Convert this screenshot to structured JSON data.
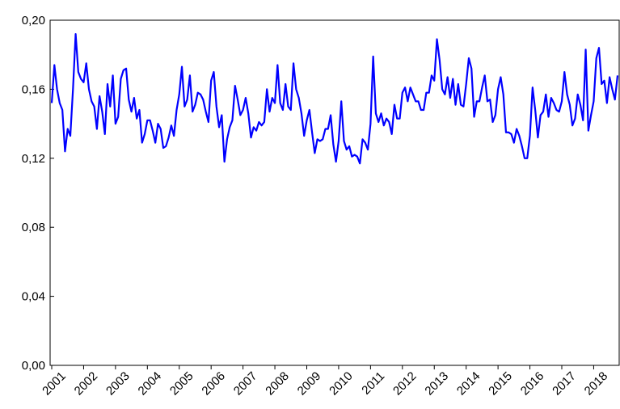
{
  "chart_data": {
    "type": "line",
    "categories": [
      "2001",
      null,
      null,
      null,
      null,
      null,
      null,
      null,
      null,
      null,
      null,
      null,
      "2002",
      null,
      null,
      null,
      null,
      null,
      null,
      null,
      null,
      null,
      null,
      null,
      "2003",
      null,
      null,
      null,
      null,
      null,
      null,
      null,
      null,
      null,
      null,
      null,
      "2004",
      null,
      null,
      null,
      null,
      null,
      null,
      null,
      null,
      null,
      null,
      null,
      "2005",
      null,
      null,
      null,
      null,
      null,
      null,
      null,
      null,
      null,
      null,
      null,
      "2006",
      null,
      null,
      null,
      null,
      null,
      null,
      null,
      null,
      null,
      null,
      null,
      "2007",
      null,
      null,
      null,
      null,
      null,
      null,
      null,
      null,
      null,
      null,
      null,
      "2008",
      null,
      null,
      null,
      null,
      null,
      null,
      null,
      null,
      null,
      null,
      null,
      "2009",
      null,
      null,
      null,
      null,
      null,
      null,
      null,
      null,
      null,
      null,
      null,
      "2010",
      null,
      null,
      null,
      null,
      null,
      null,
      null,
      null,
      null,
      null,
      null,
      "2011",
      null,
      null,
      null,
      null,
      null,
      null,
      null,
      null,
      null,
      null,
      null,
      "2012",
      null,
      null,
      null,
      null,
      null,
      null,
      null,
      null,
      null,
      null,
      null,
      "2013",
      null,
      null,
      null,
      null,
      null,
      null,
      null,
      null,
      null,
      null,
      null,
      "2014",
      null,
      null,
      null,
      null,
      null,
      null,
      null,
      null,
      null,
      null,
      null,
      "2015",
      null,
      null,
      null,
      null,
      null,
      null,
      null,
      null,
      null,
      null,
      null,
      "2016",
      null,
      null,
      null,
      null,
      null,
      null,
      null,
      null,
      null,
      null,
      null,
      "2017",
      null,
      null,
      null,
      null,
      null,
      null,
      null,
      null,
      null,
      null,
      null,
      "2018",
      null,
      null,
      null,
      null,
      null,
      null,
      null,
      null,
      null
    ],
    "values": [
      0.152,
      0.174,
      0.16,
      0.152,
      0.148,
      0.124,
      0.137,
      0.133,
      0.16,
      0.192,
      0.17,
      0.166,
      0.164,
      0.175,
      0.16,
      0.153,
      0.15,
      0.137,
      0.156,
      0.147,
      0.134,
      0.163,
      0.15,
      0.168,
      0.14,
      0.144,
      0.166,
      0.171,
      0.172,
      0.154,
      0.147,
      0.155,
      0.143,
      0.148,
      0.129,
      0.134,
      0.142,
      0.142,
      0.136,
      0.129,
      0.14,
      0.137,
      0.126,
      0.127,
      0.132,
      0.139,
      0.133,
      0.148,
      0.157,
      0.173,
      0.15,
      0.154,
      0.168,
      0.147,
      0.151,
      0.158,
      0.157,
      0.154,
      0.147,
      0.141,
      0.165,
      0.17,
      0.15,
      0.138,
      0.145,
      0.118,
      0.131,
      0.138,
      0.142,
      0.162,
      0.154,
      0.145,
      0.148,
      0.155,
      0.146,
      0.132,
      0.138,
      0.136,
      0.141,
      0.139,
      0.141,
      0.16,
      0.147,
      0.155,
      0.152,
      0.174,
      0.152,
      0.148,
      0.163,
      0.15,
      0.148,
      0.175,
      0.16,
      0.155,
      0.146,
      0.133,
      0.142,
      0.148,
      0.135,
      0.123,
      0.131,
      0.13,
      0.131,
      0.137,
      0.137,
      0.145,
      0.128,
      0.118,
      0.13,
      0.153,
      0.13,
      0.125,
      0.127,
      0.121,
      0.122,
      0.121,
      0.117,
      0.131,
      0.129,
      0.125,
      0.14,
      0.179,
      0.146,
      0.141,
      0.146,
      0.139,
      0.143,
      0.141,
      0.134,
      0.151,
      0.143,
      0.143,
      0.158,
      0.161,
      0.153,
      0.161,
      0.157,
      0.153,
      0.153,
      0.148,
      0.148,
      0.158,
      0.158,
      0.168,
      0.165,
      0.189,
      0.177,
      0.16,
      0.157,
      0.167,
      0.155,
      0.166,
      0.151,
      0.163,
      0.151,
      0.15,
      0.163,
      0.178,
      0.172,
      0.144,
      0.153,
      0.153,
      0.161,
      0.168,
      0.153,
      0.154,
      0.141,
      0.145,
      0.16,
      0.167,
      0.157,
      0.135,
      0.135,
      0.134,
      0.129,
      0.137,
      0.133,
      0.127,
      0.12,
      0.12,
      0.133,
      0.161,
      0.148,
      0.132,
      0.145,
      0.147,
      0.157,
      0.144,
      0.155,
      0.152,
      0.148,
      0.147,
      0.153,
      0.17,
      0.157,
      0.151,
      0.139,
      0.143,
      0.157,
      0.151,
      0.142,
      0.183,
      0.136,
      0.145,
      0.153,
      0.178,
      0.184,
      0.163,
      0.165,
      0.152,
      0.167,
      0.16,
      0.154,
      0.168
    ],
    "color": "#0000ff",
    "ylim": [
      0,
      0.2
    ],
    "yticks": [
      {
        "value": 0,
        "label": "0,00"
      },
      {
        "value": 0.04,
        "label": "0,04"
      },
      {
        "value": 0.08,
        "label": "0,08"
      },
      {
        "value": 0.12,
        "label": "0,12"
      },
      {
        "value": 0.16,
        "label": "0,16"
      },
      {
        "value": 0.2,
        "label": "0,20"
      }
    ],
    "grid": false
  }
}
